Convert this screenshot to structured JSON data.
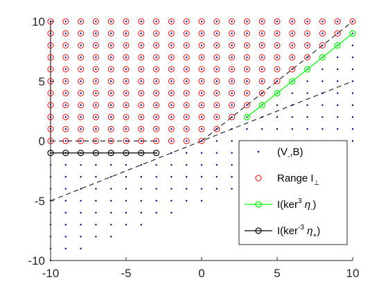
{
  "chart_data": {
    "type": "scatter",
    "title": "",
    "xlabel": "",
    "ylabel": "",
    "xlim": [
      -10,
      10
    ],
    "ylim": [
      -10,
      10
    ],
    "xticks": [
      "-10",
      "-5",
      "0",
      "5",
      "10"
    ],
    "yticks": [
      "-10",
      "-5",
      "0",
      "5",
      "10"
    ],
    "grid": false,
    "box": false,
    "legend_location": "bottom-right",
    "series": [
      {
        "name": "(V,B)",
        "style": "dots",
        "color": "#000080",
        "points": "all integer (x, y) with -10<=x<=10, -10<=y<=10, y>=x/2-5"
      },
      {
        "name": "Range I",
        "style": "circles",
        "color": "#ff0000",
        "points": "all integer (x, y) with -10<=x<=10, 0<=y<=10, y>=x"
      },
      {
        "name": "I(ker3 η-)",
        "style": "line-circles",
        "color": "#00ff00",
        "x": [
          3,
          4,
          5,
          6,
          7,
          8,
          9,
          10
        ],
        "y": [
          2,
          3,
          4,
          5,
          6,
          7,
          8,
          9
        ]
      },
      {
        "name": "I(ker-3 η+)",
        "style": "line-circles",
        "color": "#000000",
        "x": [
          -10,
          -9,
          -8,
          -7,
          -6,
          -5,
          -4,
          -3
        ],
        "y": [
          -1,
          -1,
          -1,
          -1,
          -1,
          -1,
          -1,
          -1
        ]
      }
    ],
    "reference_lines": [
      {
        "style": "dashed",
        "points": [
          [
            -10,
            -5
          ],
          [
            10,
            5
          ]
        ],
        "color": "#000000"
      },
      {
        "style": "dashed",
        "points": [
          [
            0,
            0
          ],
          [
            10,
            10
          ]
        ],
        "color": "#000000"
      },
      {
        "style": "dashed",
        "points": [
          [
            -10,
            0
          ],
          [
            -3,
            0
          ]
        ],
        "color": "#000000"
      },
      {
        "style": "solid",
        "points": [
          [
            -10,
            0
          ],
          [
            -10,
            10
          ]
        ],
        "color": "#ff0000"
      }
    ]
  },
  "legend": {
    "entries": [
      {
        "base": "(V",
        "sub": "-",
        "rest": ",B)",
        "sup": "",
        "tail": "",
        "sub2": "",
        "end": ""
      },
      {
        "base": "Range I",
        "sub": "⊥",
        "rest": "",
        "sup": "",
        "tail": "",
        "sub2": "",
        "end": ""
      },
      {
        "base": "I(ker",
        "sub": "",
        "rest": "",
        "sup": "3",
        "tail": " η",
        "sub2": "-",
        "end": ")"
      },
      {
        "base": "I(ker",
        "sub": "",
        "rest": "",
        "sup": "-3",
        "tail": " η",
        "sub2": "+",
        "end": ")"
      }
    ]
  }
}
